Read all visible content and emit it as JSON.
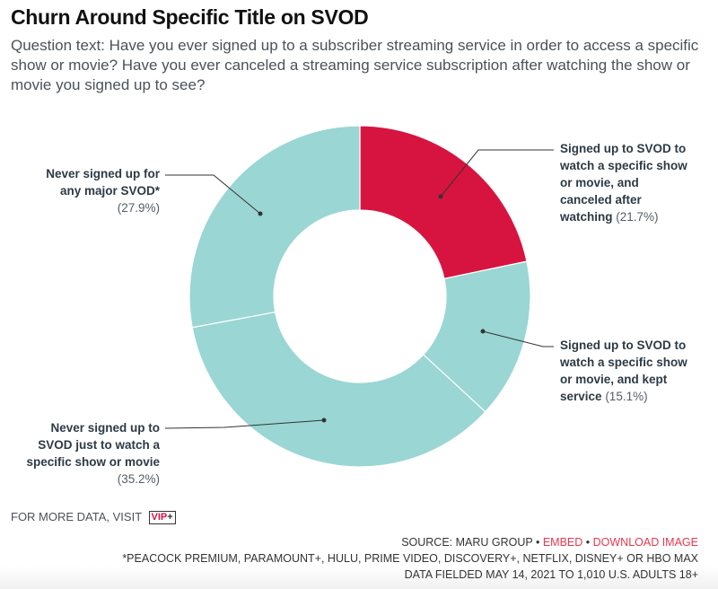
{
  "title": "Churn Around Specific Title on SVOD",
  "question": "Question text: Have you ever signed up to a subscriber streaming service in order to access a specific show or movie? Have you ever canceled a streaming service subscription after watching the show or movie you signed up to see?",
  "chart_data": {
    "type": "pie",
    "subtype": "donut",
    "title": "Churn Around Specific Title on SVOD",
    "slices": [
      {
        "label": "Signed up to SVOD to watch a specific show or movie, and canceled after watching",
        "value": 21.7,
        "display": "(21.7%)",
        "color": "#d7143f"
      },
      {
        "label": "Signed up to SVOD to watch a specific show or movie, and kept service",
        "value": 15.1,
        "display": "(15.1%)",
        "color": "#9ad6d3"
      },
      {
        "label": "Never signed up to SVOD just to watch a specific show or movie",
        "value": 35.2,
        "display": "(35.2%)",
        "color": "#9ad6d3"
      },
      {
        "label": "Never signed up for any major SVOD*",
        "value": 27.9,
        "display": "(27.9%)",
        "color": "#9ad6d3"
      }
    ],
    "start_angle": "12 o'clock, clockwise"
  },
  "labels": {
    "canceled": {
      "lines": [
        "Signed up to SVOD to",
        "watch a specific show",
        "or movie, and",
        "canceled after",
        "watching"
      ],
      "pct": "(21.7%)"
    },
    "kept": {
      "lines": [
        "Signed up to SVOD to",
        "watch a specific show",
        "or movie, and kept",
        "service"
      ],
      "pct": "(15.1%)"
    },
    "never_specific": {
      "lines": [
        "Never signed up to",
        "SVOD just to watch a",
        "specific show or movie"
      ],
      "pct": "(35.2%)"
    },
    "never_any": {
      "lines": [
        "Never signed up for",
        "any major SVOD*"
      ],
      "pct": "(27.9%)"
    }
  },
  "footer": {
    "more_data": "FOR MORE DATA, VISIT",
    "vip_text": "VIP",
    "vip_plus": "+",
    "source": "SOURCE: MARU GROUP",
    "separator": " • ",
    "embed": "EMBED",
    "download": "DOWNLOAD IMAGE",
    "footnote": "*PEACOCK PREMIUM, PARAMOUNT+, HULU, PRIME VIDEO, DISCOVERY+, NETFLIX, DISNEY+ OR HBO MAX",
    "fielded": "DATA FIELDED MAY 14, 2021 TO 1,010 U.S. ADULTS 18+"
  },
  "colors": {
    "accent": "#d7143f",
    "teal": "#9ad6d3",
    "link": "#e8384f"
  }
}
